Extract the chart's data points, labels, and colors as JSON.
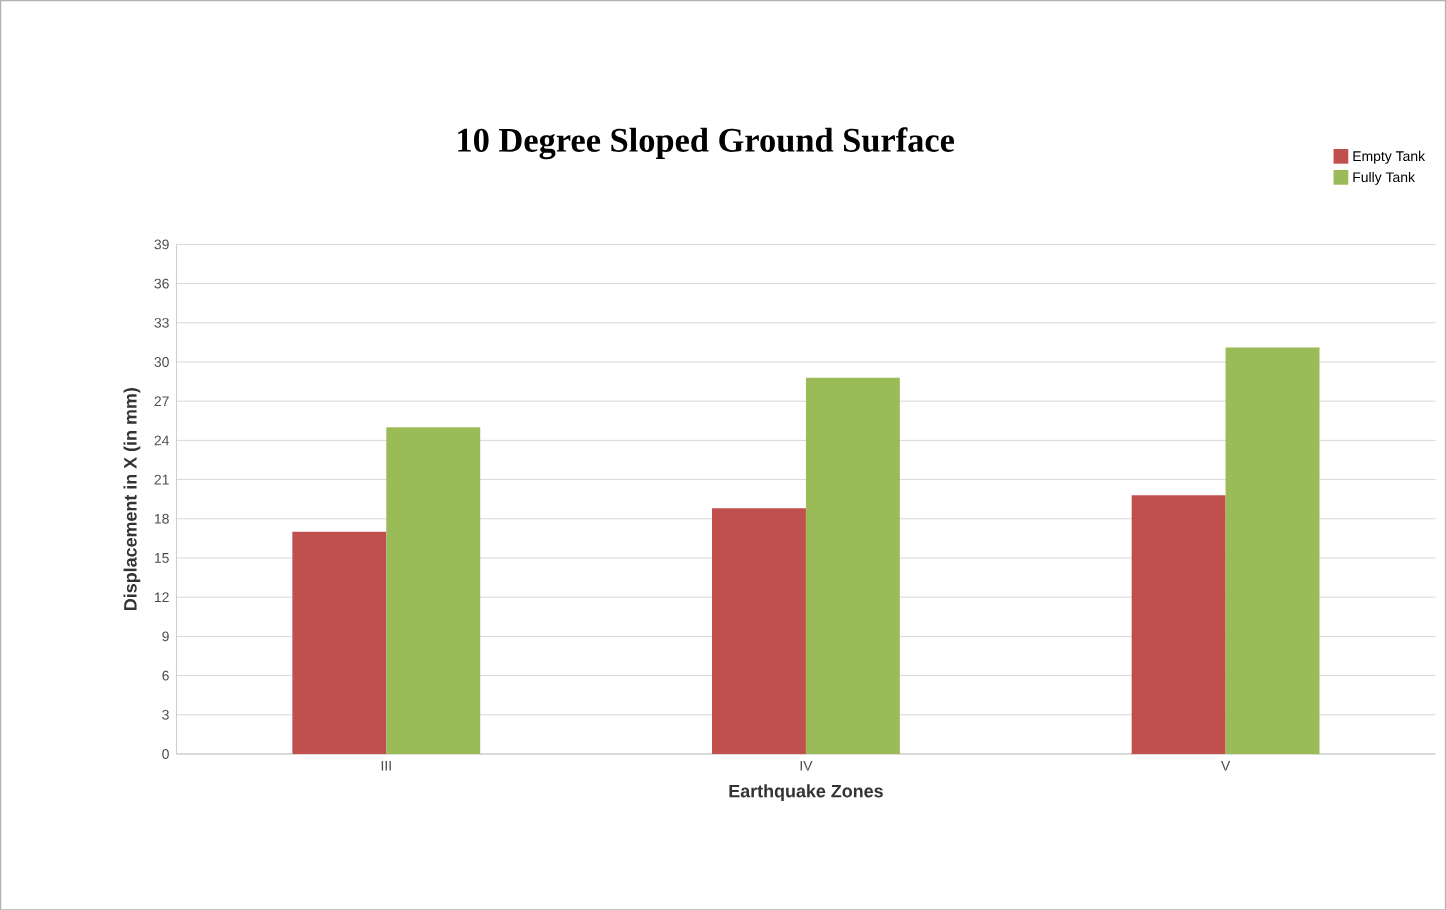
{
  "chart_data": {
    "type": "bar",
    "title": "10 Degree Sloped Ground Surface",
    "xlabel": "Earthquake Zones",
    "ylabel": "Displacement in X (in mm)",
    "categories": [
      "III",
      "IV",
      "V"
    ],
    "series": [
      {
        "name": "Empty Tank",
        "color": "#c0504d",
        "values": [
          17,
          18.8,
          19.8
        ]
      },
      {
        "name": "Fully Tank",
        "color": "#9bbb59",
        "values": [
          25,
          28.8,
          31.1
        ]
      }
    ],
    "ylim": [
      0,
      39
    ],
    "yticks": [
      0,
      3,
      6,
      9,
      12,
      15,
      18,
      21,
      24,
      27,
      30,
      33,
      36,
      39
    ],
    "grid": "y",
    "legend": "top right"
  }
}
